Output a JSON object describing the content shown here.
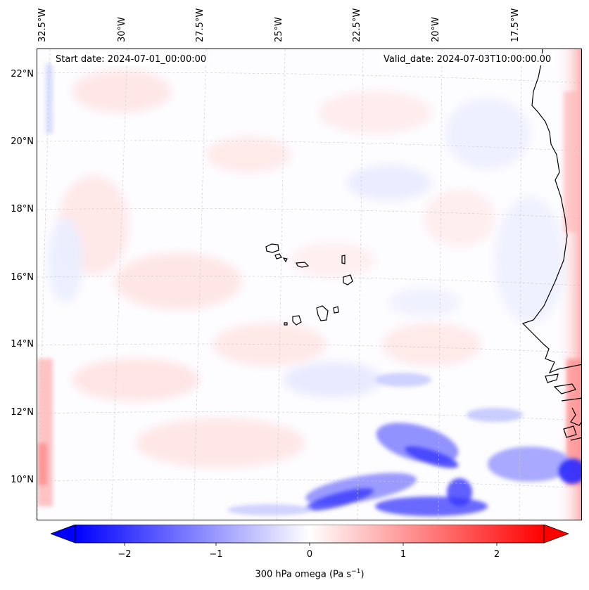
{
  "header": {
    "start_date": "Start date: 2024-07-01_00:00:00",
    "valid_date": "Valid_date: 2024-07-03T10:00:00.00"
  },
  "lon_labels": [
    "32.5°W",
    "30°W",
    "27.5°W",
    "25°W",
    "22.5°W",
    "20°W",
    "17.5°W"
  ],
  "lat_labels": [
    "22°N",
    "20°N",
    "18°N",
    "16°N",
    "14°N",
    "12°N",
    "10°N"
  ],
  "colorbar": {
    "ticks": [
      "−2",
      "−1",
      "0",
      "1",
      "2"
    ],
    "label_main": "300 hPa omega (Pa s",
    "label_sup": "−1",
    "label_end": ")",
    "min_color": "#0000ff",
    "mid_color": "#ffffff",
    "max_color": "#ff0000"
  },
  "field": {
    "variable": "300 hPa omega",
    "colormap": "bwr",
    "range": [
      -2.6,
      2.6
    ]
  }
}
